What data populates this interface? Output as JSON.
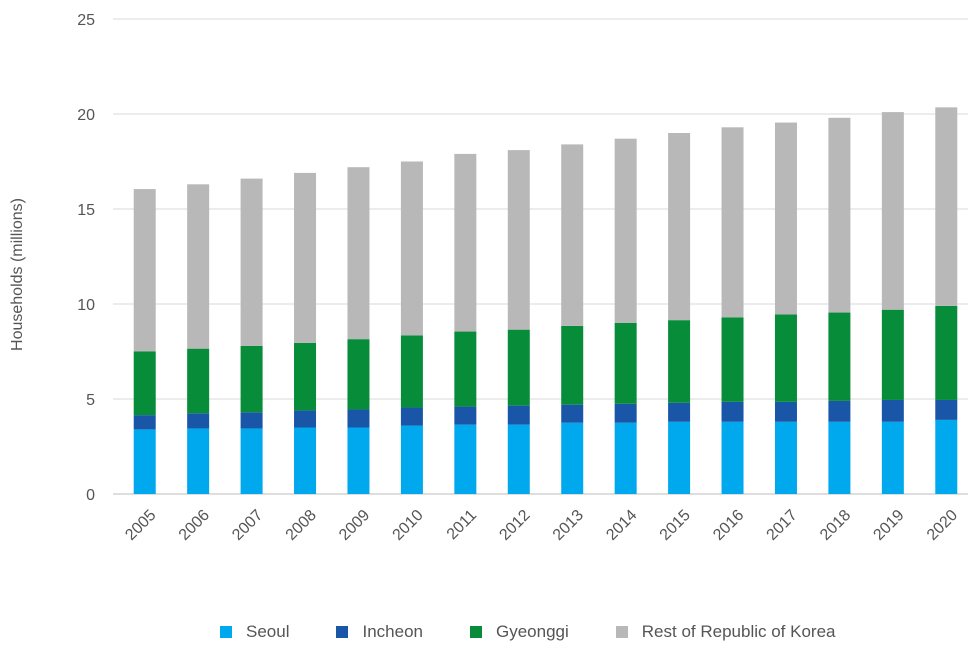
{
  "chart_data": {
    "type": "bar",
    "stacked": true,
    "title": "",
    "xlabel": "",
    "ylabel": "Households (millions)",
    "ylim": [
      0,
      25
    ],
    "yticks": [
      0,
      5,
      10,
      15,
      20,
      25
    ],
    "grid": true,
    "legend_position": "bottom",
    "categories": [
      "2005",
      "2006",
      "2007",
      "2008",
      "2009",
      "2010",
      "2011",
      "2012",
      "2013",
      "2014",
      "2015",
      "2016",
      "2017",
      "2018",
      "2019",
      "2020"
    ],
    "series": [
      {
        "name": "Seoul",
        "color": "#00a9ee",
        "values": [
          3.4,
          3.45,
          3.45,
          3.5,
          3.5,
          3.6,
          3.65,
          3.65,
          3.75,
          3.75,
          3.8,
          3.8,
          3.8,
          3.8,
          3.8,
          3.9
        ]
      },
      {
        "name": "Incheon",
        "color": "#1a56a8",
        "values": [
          0.75,
          0.8,
          0.85,
          0.9,
          0.95,
          0.95,
          0.95,
          1.0,
          0.95,
          1.0,
          1.0,
          1.05,
          1.05,
          1.1,
          1.15,
          1.05
        ]
      },
      {
        "name": "Gyeonggi",
        "color": "#078c3a",
        "values": [
          3.35,
          3.4,
          3.5,
          3.55,
          3.7,
          3.8,
          3.95,
          4.0,
          4.15,
          4.25,
          4.35,
          4.45,
          4.6,
          4.65,
          4.75,
          4.95
        ]
      },
      {
        "name": "Rest of Republic of Korea",
        "color": "#b8b8b8",
        "values": [
          8.55,
          8.65,
          8.8,
          8.95,
          9.05,
          9.15,
          9.35,
          9.45,
          9.55,
          9.7,
          9.85,
          10.0,
          10.1,
          10.25,
          10.4,
          10.45
        ]
      }
    ]
  }
}
